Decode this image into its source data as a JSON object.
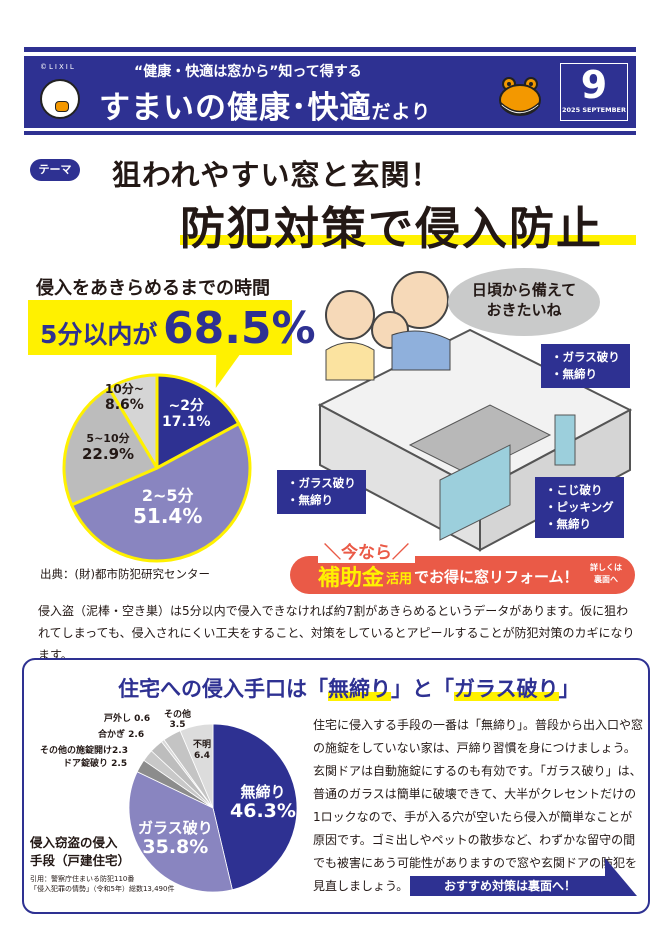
{
  "header": {
    "brand": "©LIXIL",
    "subtitle": "“健康・快適は窓から”知って得する",
    "title_main": "すまいの健康･快適",
    "title_suffix": "だより",
    "issue_number": "9",
    "issue_date": "2025 SEPTEMBER"
  },
  "theme": {
    "badge": "テーマ",
    "title": "狙われやすい窓と玄関！",
    "headline": "防犯対策で侵入防止"
  },
  "time_section": {
    "heading": "侵入をあきらめるまでの時間",
    "stat_prefix": "5分以内が",
    "stat_value": "68.5%",
    "source": "出典：(財)都市防犯研究センター"
  },
  "illustration": {
    "speech": [
      "日頃から備えて",
      "おきたいね"
    ],
    "tag_window_upper": [
      "・ガラス破り",
      "・無締り"
    ],
    "tag_window_lower": [
      "・ガラス破り",
      "・無締り"
    ],
    "tag_door": [
      "・こじ破り",
      "・ピッキング",
      "・無締り"
    ]
  },
  "banner": {
    "now": "＼今なら／",
    "subsidy": "補助金",
    "use": "活用",
    "text": "でお得に窓リフォーム！",
    "detail": [
      "詳しくは",
      "裏面へ"
    ]
  },
  "body1": "侵入盗（泥棒・空き巣）は5分以内で侵入できなければ約7割があきらめるというデータがあります。仮に狙われてしまっても、侵入されにくい工夫をすること、対策をしているとアピールすることが防犯対策のカギになります。",
  "panel": {
    "title_pre": "住宅への侵入手口は「",
    "title_hl1": "無締り",
    "title_mid": "」と「",
    "title_hl2": "ガラス破り",
    "title_post": "」",
    "caption": [
      "侵入窃盗の侵入",
      "手段（戸建住宅）"
    ],
    "source": [
      "引用：警察庁住まいる防犯110番",
      "「侵入犯罪の情勢」（令和5年）総数13,490件"
    ],
    "body": "住宅に侵入する手段の一番は「無締り」。普段から出入口や窓の施錠をしていない家は、戸締り習慣を身につけましょう。玄関ドアは自動施錠にするのも有効です。「ガラス破り」は、普通のガラスは簡単に破壊できて、大半がクレセントだけの1ロックなので、手が入る穴が空いたら侵入が簡単なことが原因です。ゴミ出しやペットの散歩など、わずかな留守の間でも被害にあう可能性がありますので窓や玄関ドアの防犯を見直しましょう。",
    "more": "おすすめ対策は裏面へ！"
  },
  "colors": {
    "navy": "#2e3192",
    "lavender": "#8985c0",
    "yellow": "#fff100",
    "orange": "#ea5a47"
  },
  "chart_data": [
    {
      "type": "pie",
      "title": "侵入をあきらめるまでの時間",
      "categories": [
        "~2分",
        "2~5分",
        "5~10分",
        "10分~"
      ],
      "values": [
        17.1,
        51.4,
        22.9,
        8.6
      ],
      "labels": [
        "17.1%",
        "51.4%",
        "22.9%",
        "8.6%"
      ],
      "colors": [
        "#2e3192",
        "#8985c0",
        "#bcbcbc",
        "#d5d5d5"
      ]
    },
    {
      "type": "pie",
      "title": "侵入窃盗の侵入手段（戸建住宅）",
      "categories": [
        "無締り",
        "ガラス破り",
        "ドア錠破り",
        "その他の施錠開け",
        "合かぎ",
        "戸外し",
        "その他",
        "不明"
      ],
      "values": [
        46.3,
        35.8,
        2.5,
        2.3,
        2.6,
        0.6,
        3.5,
        6.4
      ],
      "labels": [
        "46.3%",
        "35.8%",
        "2.5",
        "2.3",
        "2.6",
        "0.6",
        "3.5",
        "6.4"
      ],
      "colors": [
        "#2e3192",
        "#8985c0",
        "#8c8c8c",
        "#c8c8c8",
        "#bdbdbd",
        "#d8d8d8",
        "#c4c4c4",
        "#dcdcdc"
      ]
    }
  ]
}
